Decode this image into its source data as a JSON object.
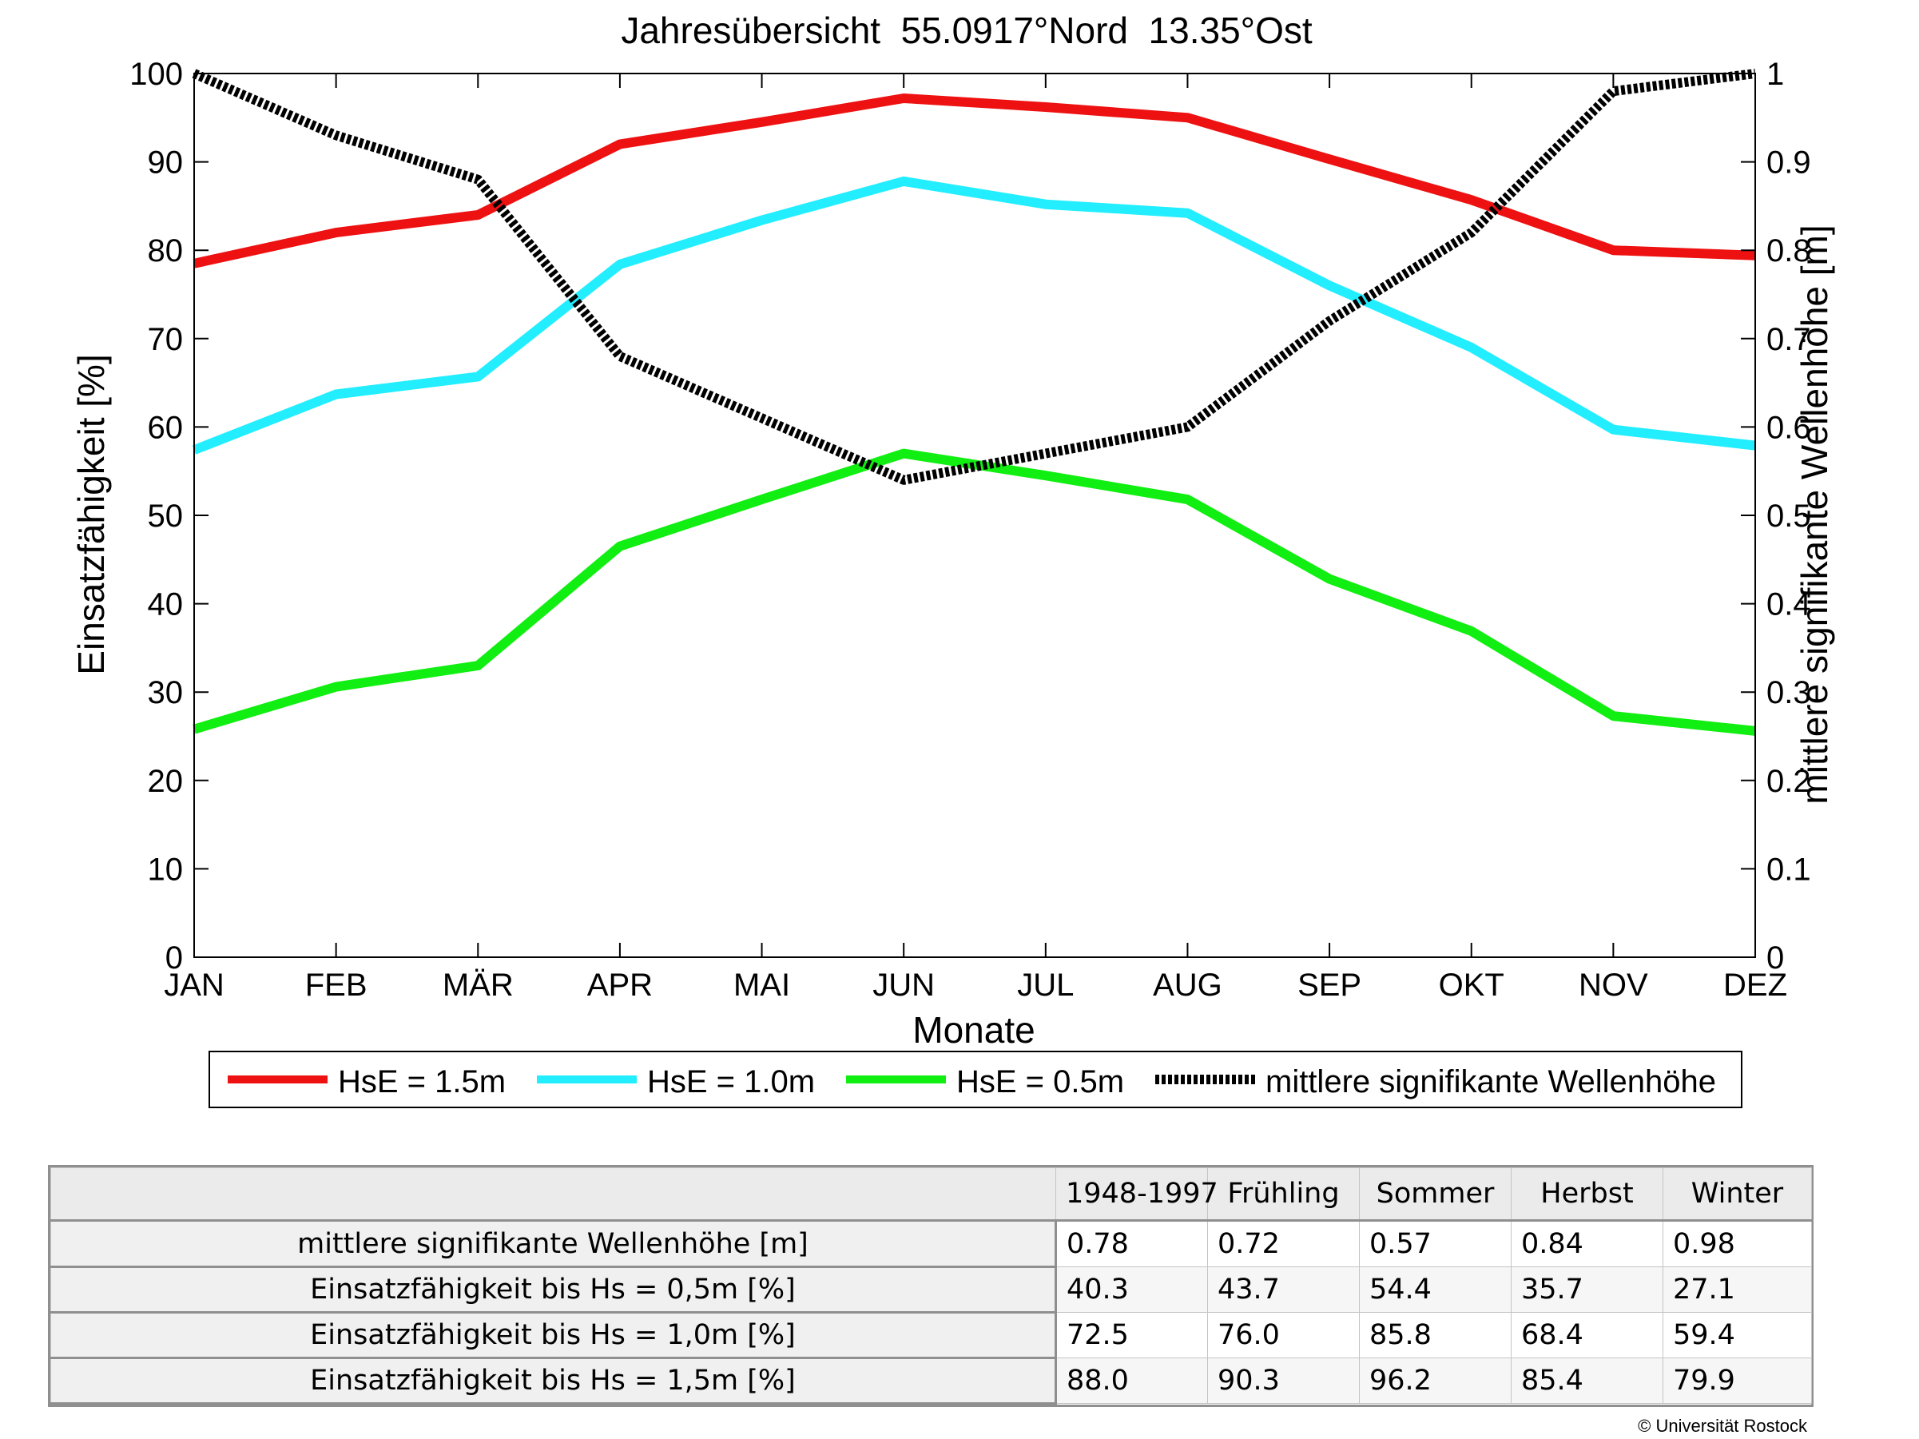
{
  "chart_data": {
    "type": "line",
    "title": "Jahresübersicht  55.0917°Nord  13.35°Ost",
    "xlabel": "Monate",
    "ylabel": "Einsatzfähigkeit [%]",
    "ylabel_right": "mittlere signifikante Wellenhöhe [m]",
    "categories": [
      "JAN",
      "FEB",
      "MÄR",
      "APR",
      "MAI",
      "JUN",
      "JUL",
      "AUG",
      "SEP",
      "OKT",
      "NOV",
      "DEZ"
    ],
    "ylim": [
      0,
      100
    ],
    "yticks": [
      "0",
      "10",
      "20",
      "30",
      "40",
      "50",
      "60",
      "70",
      "80",
      "90",
      "100"
    ],
    "ylim_right": [
      0,
      1
    ],
    "yticks_right": [
      "0",
      "0.1",
      "0.2",
      "0.3",
      "0.4",
      "0.5",
      "0.6",
      "0.7",
      "0.8",
      "0.9",
      "1"
    ],
    "grid": false,
    "legend_position": "bottom",
    "series": [
      {
        "name": "HsE = 1.5m",
        "axis": "left",
        "color": "#ee1111",
        "style": "solid",
        "values": [
          78.5,
          82,
          84,
          92,
          94.5,
          97.2,
          96.2,
          95,
          90.3,
          85.7,
          80,
          79.4
        ]
      },
      {
        "name": "HsE = 1.0m",
        "axis": "left",
        "color": "#22eeff",
        "style": "solid",
        "values": [
          57.4,
          63.7,
          65.7,
          78.4,
          83.4,
          87.8,
          85.2,
          84.2,
          76,
          69,
          59.7,
          57.9
        ]
      },
      {
        "name": "HsE = 0.5m",
        "axis": "left",
        "color": "#11ee11",
        "style": "solid",
        "values": [
          25.8,
          30.6,
          33,
          46.5,
          51.8,
          57,
          54.5,
          51.8,
          42.8,
          36.9,
          27.3,
          25.6
        ]
      },
      {
        "name": "mittlere signifikante Wellenhöhe",
        "axis": "right",
        "color": "#000000",
        "style": "dotted",
        "values": [
          1.0,
          0.93,
          0.88,
          0.68,
          0.61,
          0.54,
          0.57,
          0.6,
          0.72,
          0.82,
          0.98,
          1.0
        ]
      }
    ]
  },
  "table": {
    "columns": [
      "1948-1997",
      "Frühling",
      "Sommer",
      "Herbst",
      "Winter"
    ],
    "rows": [
      {
        "label": "mittlere signifikante Wellenhöhe [m]",
        "values": [
          "0.78",
          "0.72",
          "0.57",
          "0.84",
          "0.98"
        ]
      },
      {
        "label": "Einsatzfähigkeit bis Hs = 0,5m [%]",
        "values": [
          "40.3",
          "43.7",
          "54.4",
          "35.7",
          "27.1"
        ]
      },
      {
        "label": "Einsatzfähigkeit bis Hs = 1,0m [%]",
        "values": [
          "72.5",
          "76.0",
          "85.8",
          "68.4",
          "59.4"
        ]
      },
      {
        "label": "Einsatzfähigkeit bis Hs = 1,5m [%]",
        "values": [
          "88.0",
          "90.3",
          "96.2",
          "85.4",
          "79.9"
        ]
      }
    ]
  },
  "copyright": "© Universität Rostock",
  "colors": {
    "axis": "#000000",
    "table_border": "#8f8f8f",
    "table_header_bg": "#ebebeb"
  }
}
